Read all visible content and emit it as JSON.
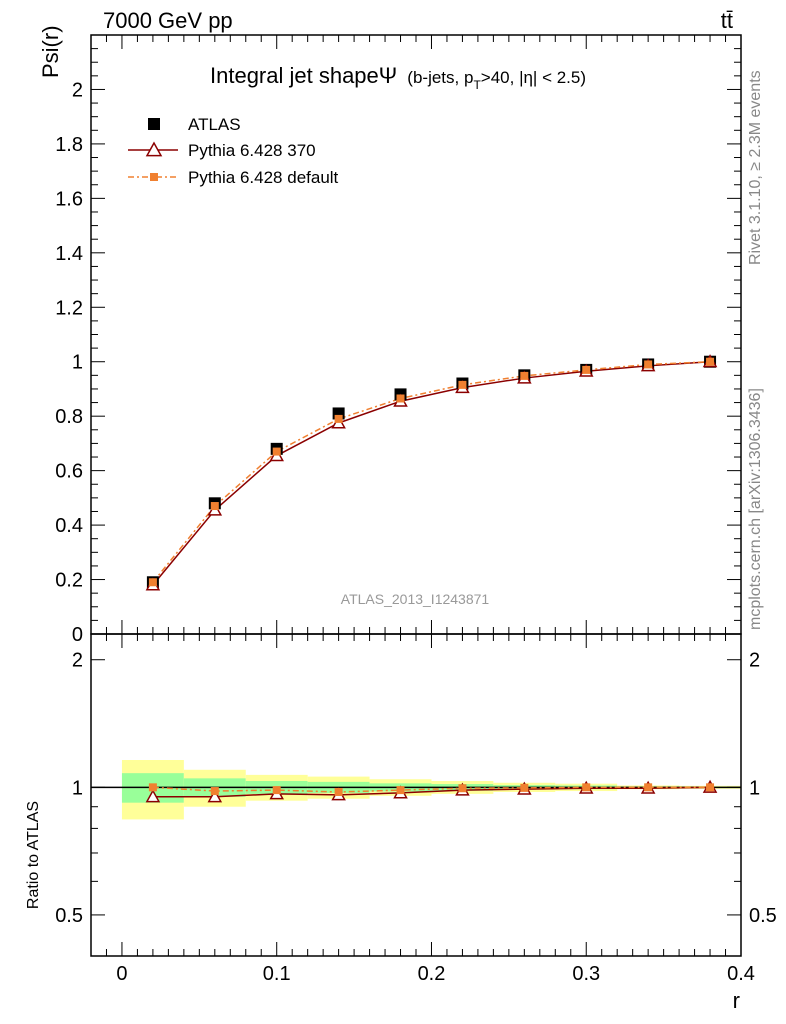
{
  "header": {
    "left": "7000 GeV pp",
    "right": "tt̄"
  },
  "side_labels": {
    "rivet": "Rivet 3.1.10, ≥ 2.3M events",
    "mcplots": "mcplots.cern.ch [arXiv:1306.3436]"
  },
  "chart_data": [
    {
      "type": "line",
      "title": "Integral jet shapeΨ",
      "subtitle_prefix": "(b-jets, p",
      "subtitle_sub": "T",
      "subtitle_suffix": ">40, |η| < 2.5)",
      "watermark": "ATLAS_2013_I1243871",
      "ylabel": "Psi(r)",
      "xlabel": "r",
      "xlim": [
        -0.02,
        0.4
      ],
      "ylim": [
        0,
        2.2
      ],
      "yticks": [
        "0",
        "0.2",
        "0.4",
        "0.6",
        "0.8",
        "1",
        "1.2",
        "1.4",
        "1.6",
        "1.8",
        "2"
      ],
      "legend_position": "top-left",
      "x": [
        0.02,
        0.06,
        0.1,
        0.14,
        0.18,
        0.22,
        0.26,
        0.3,
        0.34,
        0.38
      ],
      "series": [
        {
          "name": "ATLAS",
          "marker": "square",
          "color": "#000000",
          "values": [
            0.19,
            0.48,
            0.68,
            0.81,
            0.88,
            0.92,
            0.95,
            0.97,
            0.99,
            1.0
          ]
        },
        {
          "name": "Pythia 6.428 370",
          "marker": "triangle",
          "color": "#8b0000",
          "values": [
            0.18,
            0.455,
            0.655,
            0.775,
            0.855,
            0.905,
            0.94,
            0.965,
            0.985,
            1.0
          ]
        },
        {
          "name": "Pythia 6.428 default",
          "marker": "small-square",
          "color": "#f08030",
          "values": [
            0.19,
            0.47,
            0.67,
            0.79,
            0.865,
            0.915,
            0.948,
            0.97,
            0.99,
            1.0
          ]
        }
      ]
    },
    {
      "type": "line",
      "ylabel": "Ratio to ATLAS",
      "xlabel": "r",
      "ylim": [
        0.4,
        2.3
      ],
      "yticks": [
        "0.5",
        "1",
        "2"
      ],
      "xticks": [
        "0",
        "0.1",
        "0.2",
        "0.3",
        "0.4"
      ],
      "x": [
        0.02,
        0.06,
        0.1,
        0.14,
        0.18,
        0.22,
        0.26,
        0.3,
        0.34,
        0.38
      ],
      "bands": {
        "x_edges": [
          0.0,
          0.04,
          0.08,
          0.12,
          0.16,
          0.2,
          0.24,
          0.28,
          0.32,
          0.36,
          0.4
        ],
        "inner_color": "#99ff99",
        "outer_color": "#ffff99",
        "inner_half_width": [
          0.08,
          0.05,
          0.035,
          0.03,
          0.022,
          0.018,
          0.012,
          0.01,
          0.005,
          0.004
        ],
        "outer_half_width": [
          0.16,
          0.1,
          0.07,
          0.06,
          0.045,
          0.035,
          0.025,
          0.02,
          0.01,
          0.008
        ]
      },
      "series": [
        {
          "name": "Pythia 6.428 370",
          "color": "#8b0000",
          "values": [
            0.95,
            0.95,
            0.965,
            0.96,
            0.97,
            0.985,
            0.99,
            0.995,
            0.995,
            1.0
          ]
        },
        {
          "name": "Pythia 6.428 default",
          "color": "#f08030",
          "values": [
            1.0,
            0.98,
            0.985,
            0.975,
            0.985,
            0.995,
            0.997,
            1.0,
            1.0,
            1.0
          ]
        }
      ]
    }
  ]
}
